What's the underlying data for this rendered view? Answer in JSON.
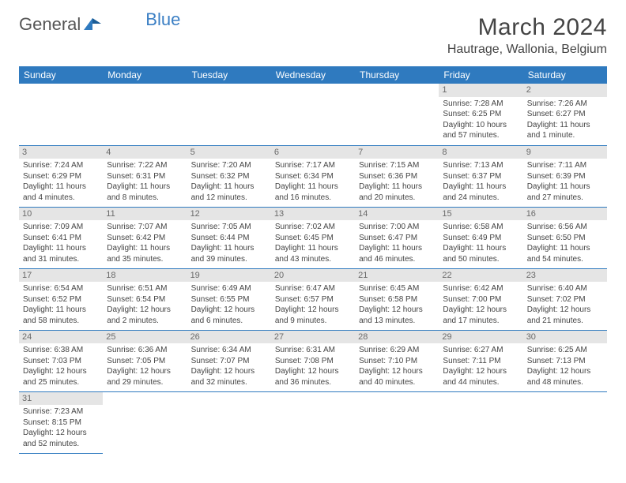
{
  "logo": {
    "general": "General",
    "blue": "Blue"
  },
  "title": "March 2024",
  "location": "Hautrage, Wallonia, Belgium",
  "colors": {
    "header_bg": "#2f7abf",
    "header_text": "#ffffff",
    "daynum_bg": "#e5e5e5",
    "daynum_text": "#6a6a6a",
    "body_text": "#444444",
    "border": "#2f7abf",
    "logo_blue": "#3b7fc4",
    "logo_gray": "#555555"
  },
  "weekdays": [
    "Sunday",
    "Monday",
    "Tuesday",
    "Wednesday",
    "Thursday",
    "Friday",
    "Saturday"
  ],
  "weeks": [
    [
      null,
      null,
      null,
      null,
      null,
      {
        "n": "1",
        "sr": "Sunrise: 7:28 AM",
        "ss": "Sunset: 6:25 PM",
        "d1": "Daylight: 10 hours",
        "d2": "and 57 minutes."
      },
      {
        "n": "2",
        "sr": "Sunrise: 7:26 AM",
        "ss": "Sunset: 6:27 PM",
        "d1": "Daylight: 11 hours",
        "d2": "and 1 minute."
      }
    ],
    [
      {
        "n": "3",
        "sr": "Sunrise: 7:24 AM",
        "ss": "Sunset: 6:29 PM",
        "d1": "Daylight: 11 hours",
        "d2": "and 4 minutes."
      },
      {
        "n": "4",
        "sr": "Sunrise: 7:22 AM",
        "ss": "Sunset: 6:31 PM",
        "d1": "Daylight: 11 hours",
        "d2": "and 8 minutes."
      },
      {
        "n": "5",
        "sr": "Sunrise: 7:20 AM",
        "ss": "Sunset: 6:32 PM",
        "d1": "Daylight: 11 hours",
        "d2": "and 12 minutes."
      },
      {
        "n": "6",
        "sr": "Sunrise: 7:17 AM",
        "ss": "Sunset: 6:34 PM",
        "d1": "Daylight: 11 hours",
        "d2": "and 16 minutes."
      },
      {
        "n": "7",
        "sr": "Sunrise: 7:15 AM",
        "ss": "Sunset: 6:36 PM",
        "d1": "Daylight: 11 hours",
        "d2": "and 20 minutes."
      },
      {
        "n": "8",
        "sr": "Sunrise: 7:13 AM",
        "ss": "Sunset: 6:37 PM",
        "d1": "Daylight: 11 hours",
        "d2": "and 24 minutes."
      },
      {
        "n": "9",
        "sr": "Sunrise: 7:11 AM",
        "ss": "Sunset: 6:39 PM",
        "d1": "Daylight: 11 hours",
        "d2": "and 27 minutes."
      }
    ],
    [
      {
        "n": "10",
        "sr": "Sunrise: 7:09 AM",
        "ss": "Sunset: 6:41 PM",
        "d1": "Daylight: 11 hours",
        "d2": "and 31 minutes."
      },
      {
        "n": "11",
        "sr": "Sunrise: 7:07 AM",
        "ss": "Sunset: 6:42 PM",
        "d1": "Daylight: 11 hours",
        "d2": "and 35 minutes."
      },
      {
        "n": "12",
        "sr": "Sunrise: 7:05 AM",
        "ss": "Sunset: 6:44 PM",
        "d1": "Daylight: 11 hours",
        "d2": "and 39 minutes."
      },
      {
        "n": "13",
        "sr": "Sunrise: 7:02 AM",
        "ss": "Sunset: 6:45 PM",
        "d1": "Daylight: 11 hours",
        "d2": "and 43 minutes."
      },
      {
        "n": "14",
        "sr": "Sunrise: 7:00 AM",
        "ss": "Sunset: 6:47 PM",
        "d1": "Daylight: 11 hours",
        "d2": "and 46 minutes."
      },
      {
        "n": "15",
        "sr": "Sunrise: 6:58 AM",
        "ss": "Sunset: 6:49 PM",
        "d1": "Daylight: 11 hours",
        "d2": "and 50 minutes."
      },
      {
        "n": "16",
        "sr": "Sunrise: 6:56 AM",
        "ss": "Sunset: 6:50 PM",
        "d1": "Daylight: 11 hours",
        "d2": "and 54 minutes."
      }
    ],
    [
      {
        "n": "17",
        "sr": "Sunrise: 6:54 AM",
        "ss": "Sunset: 6:52 PM",
        "d1": "Daylight: 11 hours",
        "d2": "and 58 minutes."
      },
      {
        "n": "18",
        "sr": "Sunrise: 6:51 AM",
        "ss": "Sunset: 6:54 PM",
        "d1": "Daylight: 12 hours",
        "d2": "and 2 minutes."
      },
      {
        "n": "19",
        "sr": "Sunrise: 6:49 AM",
        "ss": "Sunset: 6:55 PM",
        "d1": "Daylight: 12 hours",
        "d2": "and 6 minutes."
      },
      {
        "n": "20",
        "sr": "Sunrise: 6:47 AM",
        "ss": "Sunset: 6:57 PM",
        "d1": "Daylight: 12 hours",
        "d2": "and 9 minutes."
      },
      {
        "n": "21",
        "sr": "Sunrise: 6:45 AM",
        "ss": "Sunset: 6:58 PM",
        "d1": "Daylight: 12 hours",
        "d2": "and 13 minutes."
      },
      {
        "n": "22",
        "sr": "Sunrise: 6:42 AM",
        "ss": "Sunset: 7:00 PM",
        "d1": "Daylight: 12 hours",
        "d2": "and 17 minutes."
      },
      {
        "n": "23",
        "sr": "Sunrise: 6:40 AM",
        "ss": "Sunset: 7:02 PM",
        "d1": "Daylight: 12 hours",
        "d2": "and 21 minutes."
      }
    ],
    [
      {
        "n": "24",
        "sr": "Sunrise: 6:38 AM",
        "ss": "Sunset: 7:03 PM",
        "d1": "Daylight: 12 hours",
        "d2": "and 25 minutes."
      },
      {
        "n": "25",
        "sr": "Sunrise: 6:36 AM",
        "ss": "Sunset: 7:05 PM",
        "d1": "Daylight: 12 hours",
        "d2": "and 29 minutes."
      },
      {
        "n": "26",
        "sr": "Sunrise: 6:34 AM",
        "ss": "Sunset: 7:07 PM",
        "d1": "Daylight: 12 hours",
        "d2": "and 32 minutes."
      },
      {
        "n": "27",
        "sr": "Sunrise: 6:31 AM",
        "ss": "Sunset: 7:08 PM",
        "d1": "Daylight: 12 hours",
        "d2": "and 36 minutes."
      },
      {
        "n": "28",
        "sr": "Sunrise: 6:29 AM",
        "ss": "Sunset: 7:10 PM",
        "d1": "Daylight: 12 hours",
        "d2": "and 40 minutes."
      },
      {
        "n": "29",
        "sr": "Sunrise: 6:27 AM",
        "ss": "Sunset: 7:11 PM",
        "d1": "Daylight: 12 hours",
        "d2": "and 44 minutes."
      },
      {
        "n": "30",
        "sr": "Sunrise: 6:25 AM",
        "ss": "Sunset: 7:13 PM",
        "d1": "Daylight: 12 hours",
        "d2": "and 48 minutes."
      }
    ],
    [
      {
        "n": "31",
        "sr": "Sunrise: 7:23 AM",
        "ss": "Sunset: 8:15 PM",
        "d1": "Daylight: 12 hours",
        "d2": "and 52 minutes."
      },
      null,
      null,
      null,
      null,
      null,
      null
    ]
  ]
}
